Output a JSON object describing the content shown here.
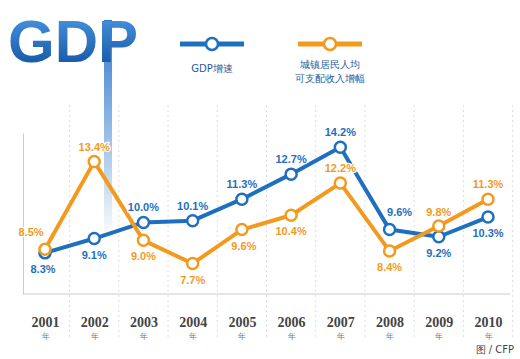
{
  "chart_data": {
    "type": "line",
    "title": "GDP",
    "categories": [
      "2001年",
      "2002年",
      "2003年",
      "2004年",
      "2005年",
      "2006年",
      "2007年",
      "2008年",
      "2009年",
      "2010年"
    ],
    "series": [
      {
        "name": "GDP增速",
        "color": "#1f6fc0",
        "values": [
          8.3,
          9.1,
          10.0,
          10.1,
          11.3,
          12.7,
          14.2,
          9.6,
          9.2,
          10.3
        ],
        "value_labels": [
          "8.3%",
          "9.1%",
          "10.0%",
          "10.1%",
          "11.3%",
          "12.7%",
          "14.2%",
          "9.6%",
          "9.2%",
          "10.3%"
        ]
      },
      {
        "name": "城镇居民人均可支配收入增幅",
        "color": "#f39a1e",
        "values": [
          8.5,
          13.4,
          9.0,
          7.7,
          9.6,
          10.4,
          12.2,
          8.4,
          9.8,
          11.3
        ],
        "value_labels": [
          "8.5%",
          "13.4%",
          "9.0%",
          "7.7%",
          "9.6%",
          "10.4%",
          "12.2%",
          "8.4%",
          "9.8%",
          "11.3%"
        ]
      }
    ],
    "ylim": [
      6,
      15
    ],
    "data_labels": true,
    "tick_labels": "x",
    "grid": false,
    "legend": "top",
    "marker": "circle",
    "annotations": [
      "图 / CFP"
    ]
  }
}
